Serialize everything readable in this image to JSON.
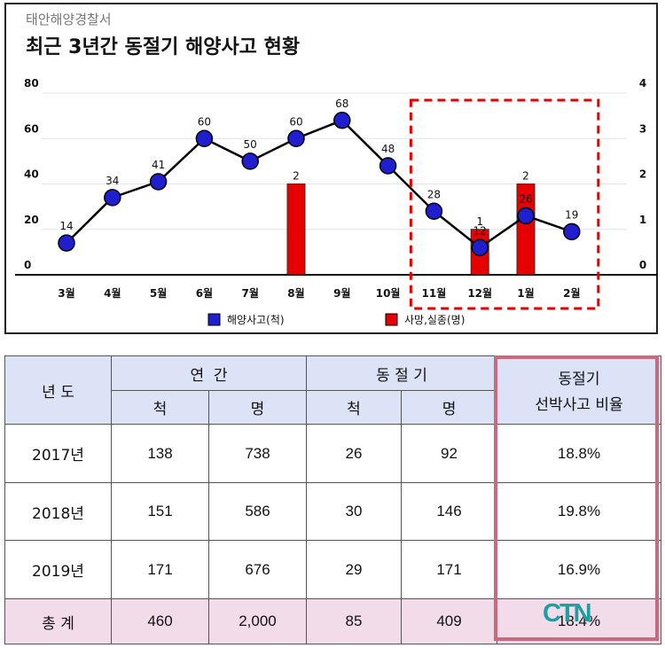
{
  "header": {
    "source": "태안해양경찰서",
    "title": "최근 3년간 동절기 해양사고 현황"
  },
  "chart_data": {
    "type": "line+bar",
    "categories": [
      "3월",
      "4월",
      "5월",
      "6월",
      "7월",
      "8월",
      "9월",
      "10월",
      "11월",
      "12월",
      "1월",
      "2월"
    ],
    "series": [
      {
        "name": "해양사고(척)",
        "kind": "line",
        "axis": "left",
        "color": "#1f1fcf",
        "values": [
          14,
          34,
          41,
          60,
          50,
          60,
          68,
          48,
          28,
          12,
          26,
          19
        ]
      },
      {
        "name": "사망,실종(명)",
        "kind": "bar",
        "axis": "right",
        "color": "#e60000",
        "values": [
          0,
          0,
          0,
          0,
          0,
          2,
          0,
          0,
          0,
          1,
          2,
          0
        ]
      }
    ],
    "left_axis": {
      "ylim": [
        0,
        80
      ],
      "ticks": [
        0,
        20,
        40,
        60,
        80
      ]
    },
    "right_axis": {
      "ylim": [
        0,
        4
      ],
      "ticks": [
        0,
        1,
        2,
        3,
        4
      ]
    },
    "highlight_categories": [
      "11월",
      "12월",
      "1월",
      "2월"
    ],
    "highlight_color": "#e60000",
    "legend_position": "bottom"
  },
  "table": {
    "year_header": "년 도",
    "annual_header": "연  간",
    "winter_header": "동 절 기",
    "ratio_header_line1": "동절기",
    "ratio_header_line2": "선박사고 비율",
    "sub_ships": "척",
    "sub_people": "명",
    "rows": [
      {
        "year": "2017년",
        "annual_ships": "138",
        "annual_people": "738",
        "winter_ships": "26",
        "winter_people": "92",
        "ratio": "18.8%"
      },
      {
        "year": "2018년",
        "annual_ships": "151",
        "annual_people": "586",
        "winter_ships": "30",
        "winter_people": "146",
        "ratio": "19.8%"
      },
      {
        "year": "2019년",
        "annual_ships": "171",
        "annual_people": "676",
        "winter_ships": "29",
        "winter_people": "171",
        "ratio": "16.9%"
      }
    ],
    "total": {
      "label": "총 계",
      "annual_ships": "460",
      "annual_people": "2,000",
      "winter_ships": "85",
      "winter_people": "409",
      "ratio": "18.4%"
    },
    "highlight_color": "#c96a7e"
  },
  "watermark": "CTN"
}
